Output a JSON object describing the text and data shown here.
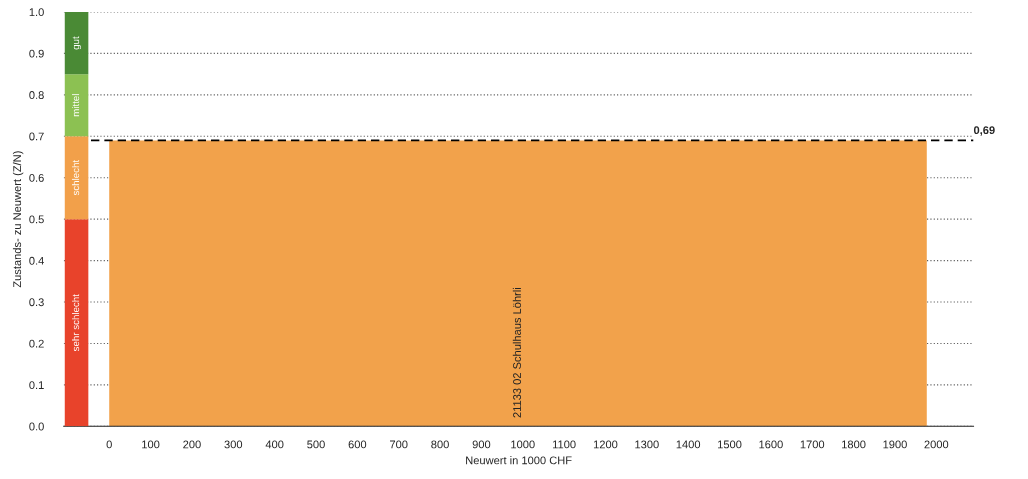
{
  "chart_data": {
    "type": "area",
    "xlabel": "Neuwert in 1000 CHF",
    "ylabel": "Zustands- zu Neuwert (Z/N)",
    "series": [
      {
        "name": "21133 02 Schulhaus Löhrli",
        "color": "#f2a24b",
        "x": [
          0,
          1977
        ],
        "values": [
          0.69,
          0.69
        ]
      },
      {
        "type": "bar",
        "name": "sehr schlecht",
        "color": "#e8432b",
        "x": [
          -79
        ],
        "base": [
          0
        ],
        "values": [
          0.5
        ]
      },
      {
        "type": "bar",
        "name": "schlecht",
        "color": "#f2a04a",
        "x": [
          -79
        ],
        "base": [
          0.5
        ],
        "values": [
          0.2
        ]
      },
      {
        "type": "bar",
        "name": "mittel",
        "color": "#8cc152",
        "x": [
          -79
        ],
        "base": [
          0.7
        ],
        "values": [
          0.15
        ]
      },
      {
        "type": "bar",
        "name": "gut",
        "color": "#4a8a35",
        "x": [
          -79
        ],
        "base": [
          0.85
        ],
        "values": [
          0.15
        ]
      }
    ],
    "xlim": [
      -110,
      2090
    ],
    "xticks": [
      0,
      100,
      200,
      300,
      400,
      500,
      600,
      700,
      800,
      900,
      1000,
      1100,
      1200,
      1300,
      1400,
      1500,
      1600,
      1700,
      1800,
      1900,
      2000
    ],
    "ylim": [
      0,
      1
    ],
    "yticks": [
      {
        "value": 0,
        "label": "0.0"
      },
      0.1,
      0.2,
      0.3,
      0.4,
      0.5,
      0.6,
      0.7,
      0.8,
      0.9,
      {
        "value": 1,
        "label": "1.0"
      }
    ],
    "grid": "y",
    "ref_lines": [
      {
        "axis": "y",
        "value": 0.69,
        "label": "0,69",
        "color": "#000000",
        "line_style": "dashed"
      }
    ]
  }
}
